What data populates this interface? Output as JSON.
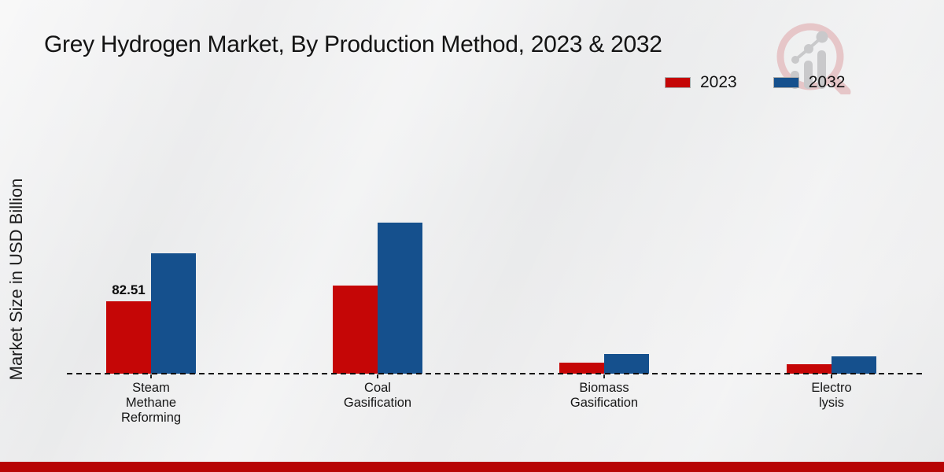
{
  "page": {
    "title": "Grey Hydrogen Market, By Production Method, 2023 & 2032",
    "y_axis_label": "Market Size in USD Billion"
  },
  "colors": {
    "series_2023": "#c50606",
    "series_2032": "#15508d",
    "footer_band": "#b70404",
    "baseline": "#0b0b0b",
    "title_text": "#141414",
    "watermark_ring": "#e6c4c6",
    "watermark_gray": "#c7c7c9"
  },
  "legend": {
    "items": [
      {
        "label": "2023",
        "color": "#c50606"
      },
      {
        "label": "2032",
        "color": "#15508d"
      }
    ]
  },
  "chart_data": {
    "type": "bar",
    "title": "Grey Hydrogen Market, By Production Method, 2023 & 2032",
    "xlabel": "",
    "ylabel": "Market Size in USD Billion",
    "categories": [
      "Steam Methane Reforming",
      "Coal Gasification",
      "Biomass Gasification",
      "Electrolysis"
    ],
    "category_label_lines": [
      [
        "Steam",
        "Methane",
        "Reforming"
      ],
      [
        "Coal",
        "Gasification"
      ],
      [
        "Biomass",
        "Gasification"
      ],
      [
        "Electro",
        "lysis"
      ]
    ],
    "series": [
      {
        "name": "2023",
        "color": "#c50606",
        "values": [
          82.51,
          100.5,
          13,
          10.5
        ]
      },
      {
        "name": "2032",
        "color": "#15508d",
        "values": [
          137,
          172,
          22,
          19.5
        ]
      }
    ],
    "annotations": [
      {
        "category_index": 0,
        "series_index": 0,
        "text": "82.51"
      }
    ],
    "baseline_value": 0,
    "ylim": [
      0,
      180
    ],
    "grid": false,
    "legend_position": "top-right",
    "axis_style": "dashed-zero-line"
  }
}
